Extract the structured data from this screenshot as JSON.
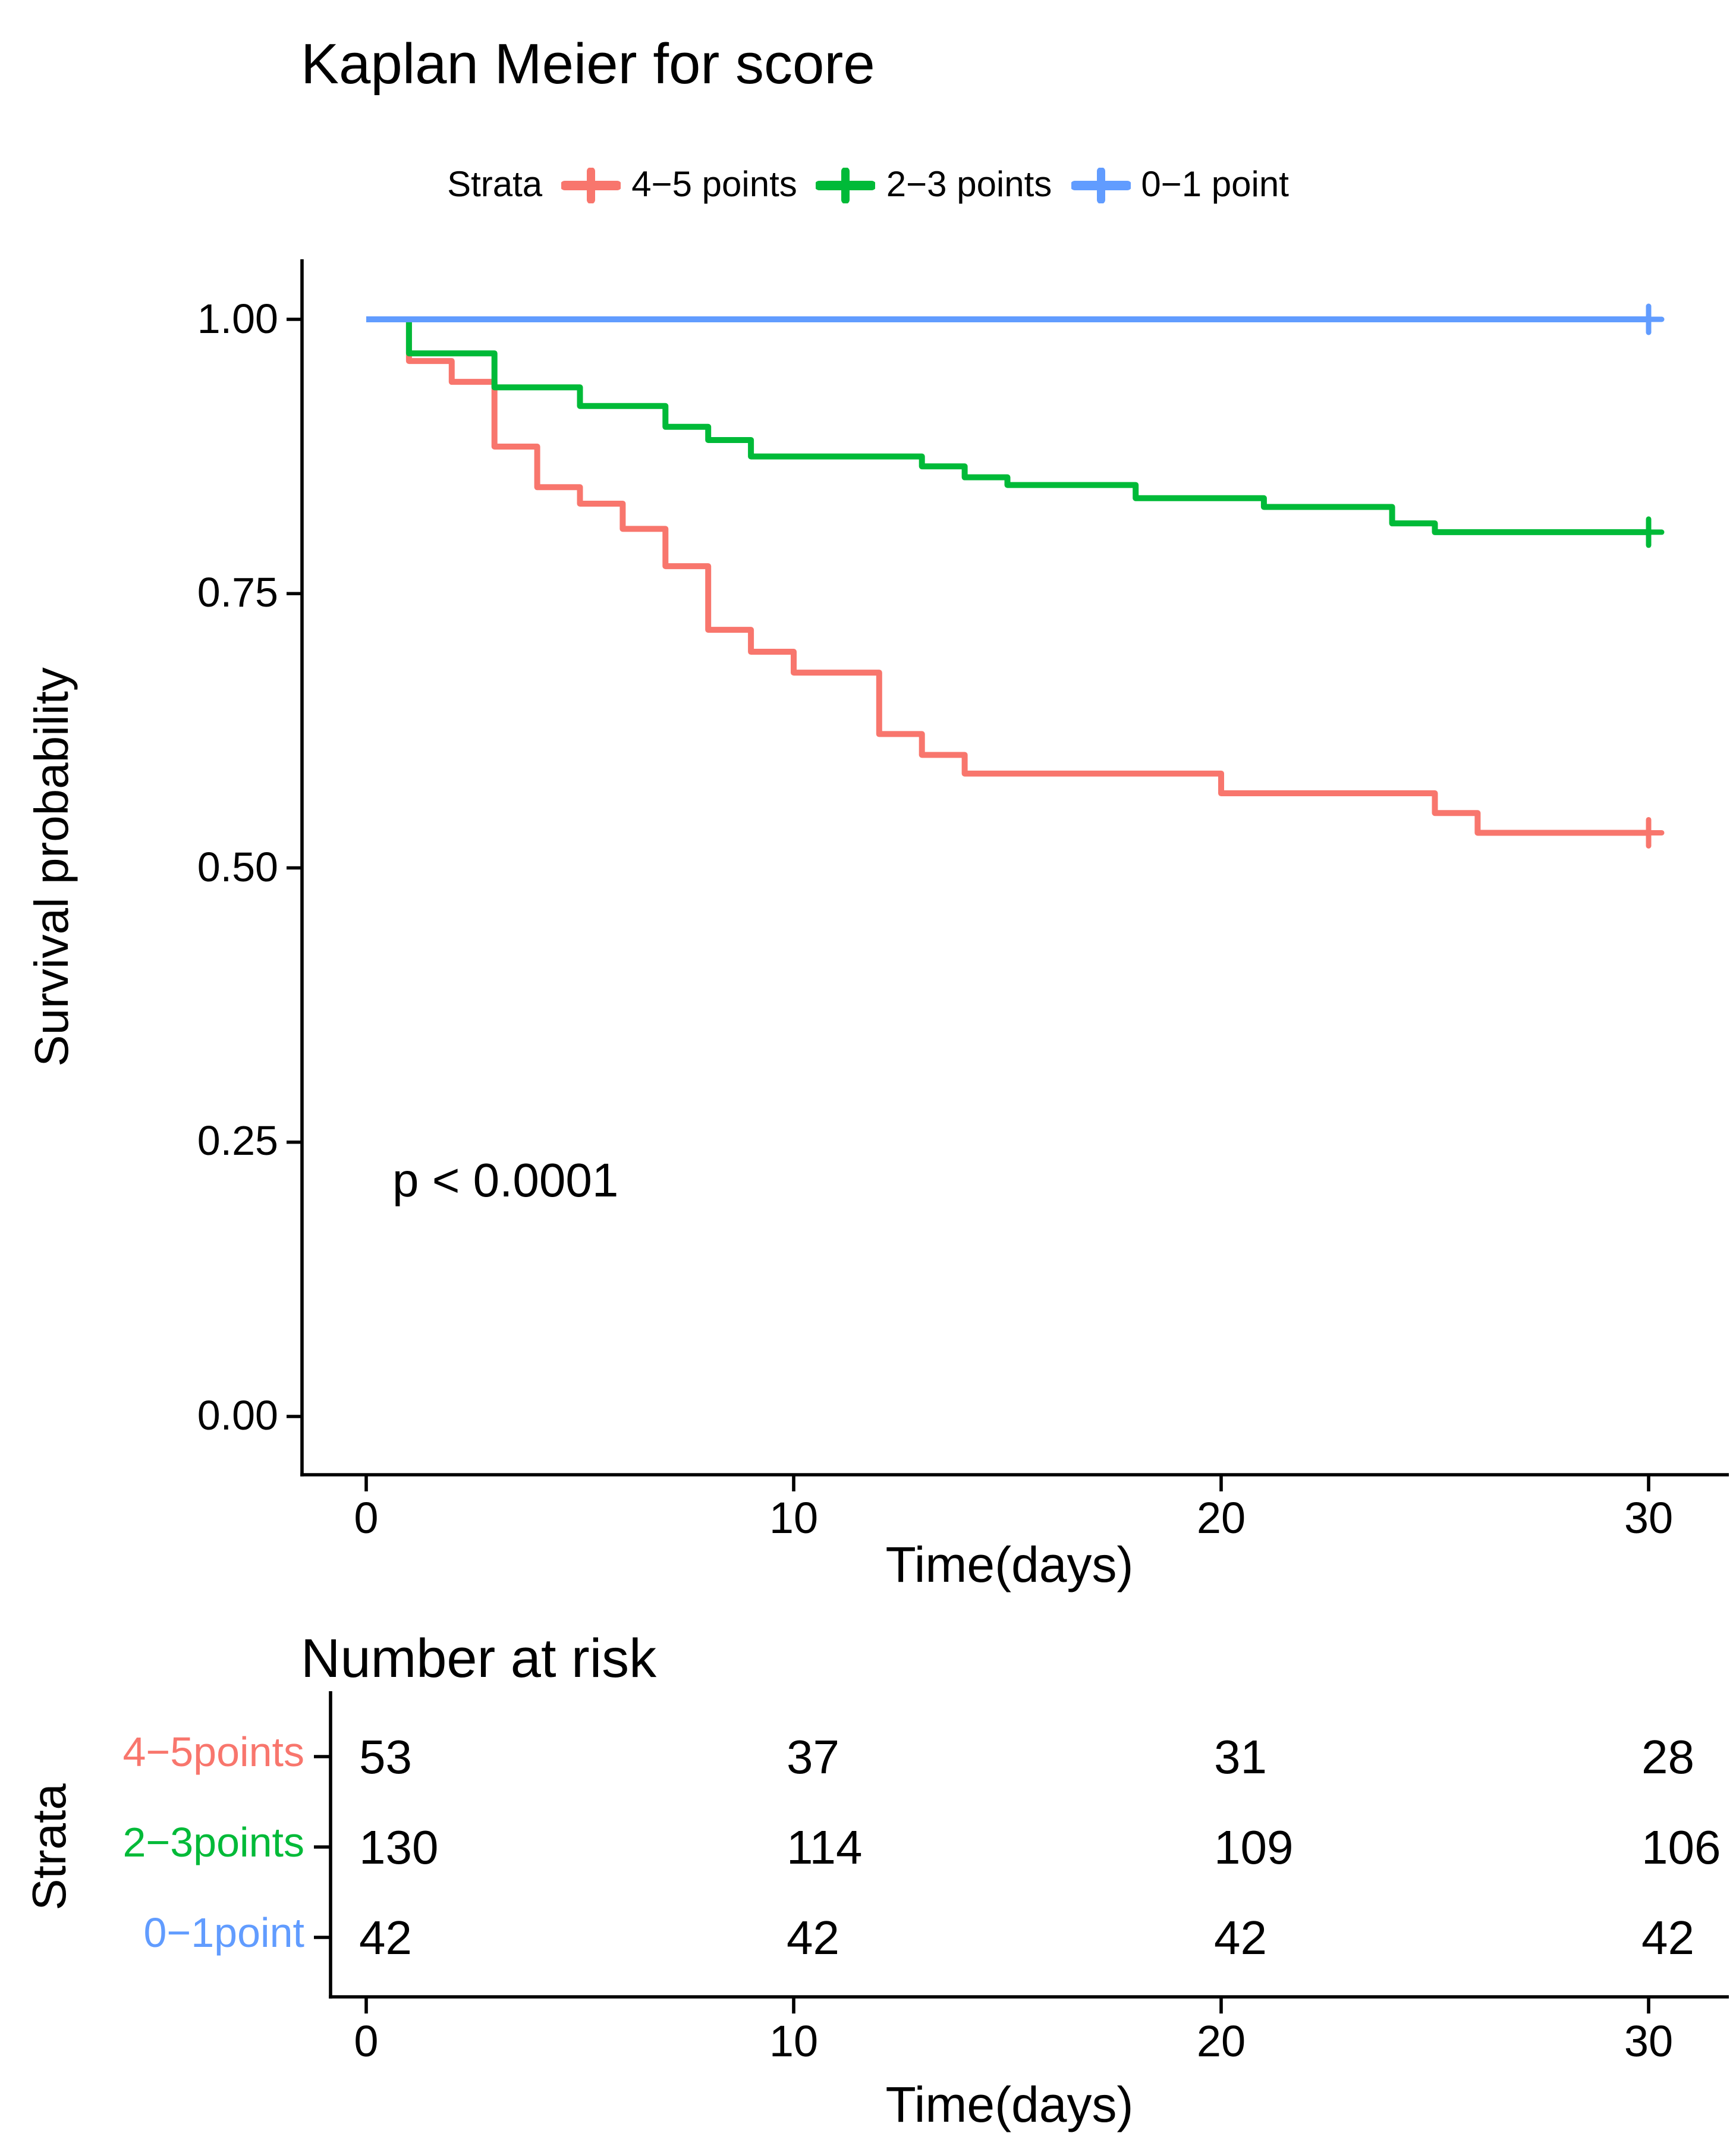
{
  "chart_data": {
    "type": "line",
    "subtype": "kaplan-meier-step",
    "title": "Kaplan Meier for score",
    "xlabel": "Time(days)",
    "ylabel": "Survival probability",
    "pvalue_text": "p < 0.0001",
    "xlim": [
      0,
      30
    ],
    "ylim": [
      0,
      1
    ],
    "grid": "off",
    "legend_position": "top",
    "xticks": [
      0,
      10,
      20,
      30
    ],
    "yticks": [
      {
        "v": 0.0,
        "label": "0.00"
      },
      {
        "v": 0.25,
        "label": "0.25"
      },
      {
        "v": 0.5,
        "label": "0.50"
      },
      {
        "v": 0.75,
        "label": "0.75"
      },
      {
        "v": 1.0,
        "label": "1.00"
      }
    ],
    "series": [
      {
        "name": "4−5 points",
        "color": "#F8766D",
        "points": [
          [
            0,
            1.0
          ],
          [
            1,
            0.962
          ],
          [
            2,
            0.943
          ],
          [
            3,
            0.884
          ],
          [
            4,
            0.847
          ],
          [
            5,
            0.832
          ],
          [
            6,
            0.809
          ],
          [
            7,
            0.775
          ],
          [
            8,
            0.717
          ],
          [
            9,
            0.697
          ],
          [
            10,
            0.678
          ],
          [
            12,
            0.622
          ],
          [
            13,
            0.603
          ],
          [
            14,
            0.586
          ],
          [
            20,
            0.568
          ],
          [
            25,
            0.55
          ],
          [
            26,
            0.532
          ]
        ],
        "end_time": 30,
        "censored_at_end": true
      },
      {
        "name": "2−3 points",
        "color": "#00BA38",
        "points": [
          [
            0,
            1.0
          ],
          [
            1,
            0.969
          ],
          [
            3,
            0.938
          ],
          [
            5,
            0.921
          ],
          [
            7,
            0.902
          ],
          [
            8,
            0.89
          ],
          [
            9,
            0.875
          ],
          [
            13,
            0.866
          ],
          [
            14,
            0.856
          ],
          [
            15,
            0.849
          ],
          [
            18,
            0.837
          ],
          [
            21,
            0.829
          ],
          [
            24,
            0.814
          ],
          [
            25,
            0.806
          ]
        ],
        "end_time": 30,
        "censored_at_end": true
      },
      {
        "name": "0−1 point",
        "color": "#619CFF",
        "points": [
          [
            0,
            1.0
          ]
        ],
        "end_time": 30,
        "censored_at_end": true
      }
    ]
  },
  "legend": {
    "title": "Strata",
    "entries": [
      {
        "label": "4−5 points",
        "color": "#F8766D"
      },
      {
        "label": "2−3 points",
        "color": "#00BA38"
      },
      {
        "label": "0−1 point",
        "color": "#619CFF"
      }
    ]
  },
  "risk_table": {
    "title": "Number at risk",
    "axis_label": "Strata",
    "xlabel": "Time(days)",
    "xticks": [
      0,
      10,
      20,
      30
    ],
    "rows": [
      {
        "label": "4−5points",
        "color": "#F8766D",
        "values": [
          "53",
          "37",
          "31",
          "28"
        ]
      },
      {
        "label": "2−3points",
        "color": "#00BA38",
        "values": [
          "130",
          "114",
          "109",
          "106"
        ]
      },
      {
        "label": "0−1point",
        "color": "#619CFF",
        "values": [
          "42",
          "42",
          "42",
          "42"
        ]
      }
    ]
  },
  "colors": {
    "axis": "#000000",
    "text": "#000000",
    "background": "#ffffff"
  }
}
